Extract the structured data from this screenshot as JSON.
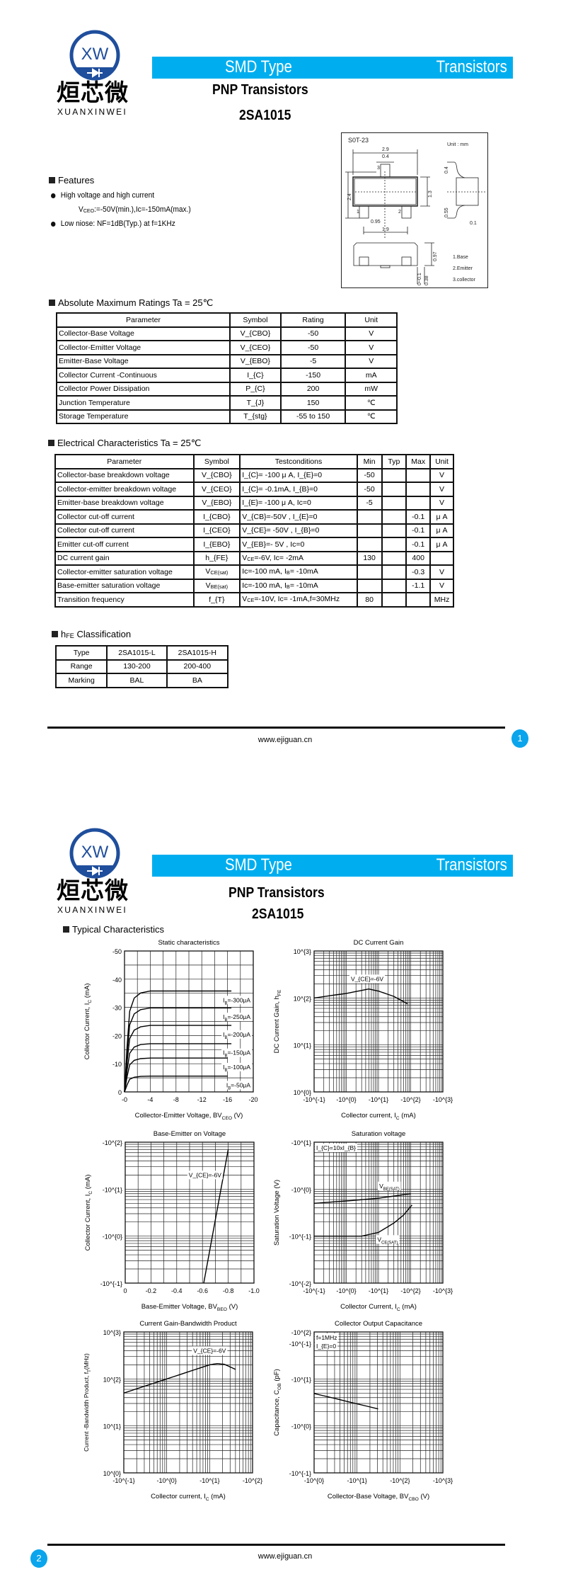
{
  "logo": {
    "mark": "XW",
    "name_cn": "烜芯微",
    "name_en": "XUANXINWEI",
    "ring_color": "#1f4e9c",
    "accent_color": "#5fb936"
  },
  "header": {
    "left": "SMD Type",
    "right": "Transistors",
    "bar_color": "#00aeef"
  },
  "pages": [
    {
      "title": "PNP  Transistors",
      "part": "2SA1015",
      "footer_url": "www.ejiguan.cn",
      "page_number": "1"
    },
    {
      "title": "PNP  Transistors",
      "part": "2SA1015",
      "footer_url": "www.ejiguan.cn",
      "page_number": "2"
    }
  ],
  "package": {
    "name": "S0T-23",
    "unit": "Unit : mm",
    "dims": [
      "2.9",
      "0.4",
      "2.4",
      "1.3",
      "0.4",
      "0.55",
      "0.95",
      "1.9",
      "0.1",
      "0.97",
      "0~0.1",
      "0.38"
    ],
    "pins": [
      "1",
      "2",
      "3"
    ],
    "legend": [
      "1.Base",
      "2.Emitter",
      "3.collector"
    ]
  },
  "features": {
    "heading": "Features",
    "items": [
      {
        "text": "High voltage and high current",
        "detail": "V_{CEO}:=-50V(min.),Ic=-150mA(max.)"
      },
      {
        "text": "Low niose: NF=1dB(Typ.) at f=1KHz"
      }
    ]
  },
  "abs_max": {
    "heading": "Absolute Maximum Ratings Ta = 25℃",
    "columns": [
      "Parameter",
      "Symbol",
      "Rating",
      "Unit"
    ],
    "rows": [
      [
        "Collector-Base Voltage",
        "V_{CBO}",
        "-50",
        "V"
      ],
      [
        "Collector-Emitter Voltage",
        "V_{CEO}",
        "-50",
        "V"
      ],
      [
        "Emitter-Base Voltage",
        "V_{EBO}",
        "-5",
        "V"
      ],
      [
        "Collector Current -Continuous",
        "I_{C}",
        "-150",
        "mA"
      ],
      [
        "Collector Power Dissipation",
        "P_{C}",
        "200",
        "mW"
      ],
      [
        "Junction Temperature",
        "T_{J}",
        "150",
        "℃"
      ],
      [
        "Storage Temperature",
        "T_{stg}",
        "-55 to 150",
        "℃"
      ]
    ]
  },
  "electrical": {
    "heading": "Electrical Characteristics Ta = 25℃",
    "columns": [
      "Parameter",
      "Symbol",
      "Testconditions",
      "Min",
      "Typ",
      "Max",
      "Unit"
    ],
    "rows": [
      [
        "Collector-base breakdown voltage",
        "V_{CBO}",
        "I_{C}= -100 μ A, I_{E}=0",
        "-50",
        "",
        "",
        "V"
      ],
      [
        "Collector-emitter breakdown voltage",
        "V_{CEO}",
        "I_{C}= -0.1mA, I_{B}=0",
        "-50",
        "",
        "",
        "V"
      ],
      [
        "Emitter-base breakdown voltage",
        "V_{EBO}",
        "I_{E}= -100 μ A, Ic=0",
        "-5",
        "",
        "",
        "V"
      ],
      [
        "Collector cut-off current",
        "I_{CBO}",
        "V_{CB}=-50V , I_{E}=0",
        "",
        "",
        "-0.1",
        "μ A"
      ],
      [
        "Collector cut-off current",
        "I_{CEO}",
        "V_{CE}= -50V , I_{B}=0",
        "",
        "",
        "-0.1",
        "μ A"
      ],
      [
        "Emitter cut-off current",
        "I_{EBO}",
        "V_{EB}=- 5V , Ic=0",
        "",
        "",
        "-0.1",
        "μ A"
      ],
      [
        "DC current gain",
        "h_{FE}",
        "V_{CE}=-6V, Ic= -2mA",
        "130",
        "",
        "400",
        ""
      ],
      [
        "Collector-emitter saturation voltage",
        "V_{CE(sat)}",
        "Ic=-100 mA, I_{B}= -10mA",
        "",
        "",
        "-0.3",
        "V"
      ],
      [
        "Base-emitter saturation voltage",
        "V_{BE(sat)}",
        "Ic=-100 mA, I_{B}= -10mA",
        "",
        "",
        "-1.1",
        "V"
      ],
      [
        "Transition frequency",
        "f_{T}",
        "V_{CE}=-10V, Ic= -1mA,f=30MHz",
        "80",
        "",
        "",
        "MHz"
      ]
    ]
  },
  "hfe_class": {
    "heading": "h_{FE} Classification",
    "rows": [
      [
        "Type",
        "2SA1015-L",
        "2SA1015-H"
      ],
      [
        "Range",
        "130-200",
        "200-400"
      ],
      [
        "Marking",
        "BAL",
        "BA"
      ]
    ]
  },
  "typical": {
    "heading": "Typical  Characteristics"
  },
  "chart_data": [
    {
      "type": "line",
      "title": "Static characteristics",
      "xlabel": "Collector-Emitter Voltage, BV_{CEO} (V)",
      "ylabel": "Collector Current, I_{C} (mA)",
      "xscale": "linear",
      "yscale": "linear",
      "xlim": [
        0,
        -20
      ],
      "ylim": [
        0,
        -50
      ],
      "xticks": [
        0,
        -4,
        -8,
        -12,
        -16,
        -20
      ],
      "xtick_labels": [
        "-0",
        "-4",
        "-8",
        "-12",
        "-16",
        "-20"
      ],
      "yticks": [
        0,
        -10,
        -20,
        -30,
        -40,
        -50
      ],
      "ytick_labels": [
        "0",
        "-10",
        "-20",
        "-30",
        "-40",
        "-50"
      ],
      "grid": true,
      "grid_step": [
        -2,
        -5
      ],
      "series": [
        {
          "name": "I_{B}=-300μA",
          "points": [
            [
              0,
              0
            ],
            [
              -0.4,
              -16.1
            ],
            [
              -0.8,
              -28.6
            ],
            [
              -1.5,
              -33.3
            ],
            [
              -2.5,
              -35.1
            ],
            [
              -4,
              -35.8
            ],
            [
              -16.6,
              -35.8
            ]
          ]
        },
        {
          "name": "I_{B}=-250μA",
          "points": [
            [
              0,
              0
            ],
            [
              -0.4,
              -13.4
            ],
            [
              -0.8,
              -23.8
            ],
            [
              -1.5,
              -27.7
            ],
            [
              -2.5,
              -29.2
            ],
            [
              -4,
              -29.8
            ],
            [
              -16.6,
              -29.8
            ]
          ]
        },
        {
          "name": "I_{B}=-200μA",
          "points": [
            [
              0,
              0
            ],
            [
              -0.4,
              -10.6
            ],
            [
              -0.8,
              -18.9
            ],
            [
              -1.5,
              -21.9
            ],
            [
              -2.5,
              -23.1
            ],
            [
              -4,
              -23.6
            ],
            [
              -16.6,
              -23.6
            ]
          ]
        },
        {
          "name": "I_{B}=-150μA",
          "points": [
            [
              0,
              0
            ],
            [
              -0.4,
              -7.7
            ],
            [
              -0.8,
              -13.7
            ],
            [
              -1.5,
              -15.9
            ],
            [
              -2.5,
              -16.8
            ],
            [
              -4,
              -17.1
            ],
            [
              -16.6,
              -17.1
            ]
          ]
        },
        {
          "name": "I_{B}=-100μA",
          "points": [
            [
              0,
              0
            ],
            [
              -0.4,
              -5.4
            ],
            [
              -0.8,
              -9.6
            ],
            [
              -1.5,
              -11.2
            ],
            [
              -2.5,
              -11.8
            ],
            [
              -4,
              -12
            ],
            [
              -16,
              -12
            ]
          ]
        },
        {
          "name": "I_{B}=-50μA",
          "points": [
            [
              0,
              0
            ],
            [
              -0.4,
              -2.5
            ],
            [
              -0.8,
              -4.5
            ],
            [
              -1.5,
              -5.2
            ],
            [
              -2.5,
              -5.5
            ],
            [
              -4,
              -5.6
            ],
            [
              -16,
              -5.6
            ]
          ]
        }
      ]
    },
    {
      "type": "line",
      "title": "DC Current Gain",
      "xlabel": "Collector current, I_{C} (mA)",
      "ylabel": "DC Current Gain, h_{FE}",
      "xscale": "log",
      "yscale": "log",
      "xlim": [
        -0.1,
        -1000
      ],
      "ylim": [
        1,
        1000
      ],
      "xticks": [
        -0.1,
        -1,
        -10,
        -100,
        -1000
      ],
      "xtick_labels": [
        "-10^{-1}",
        "-10^{0}",
        "-10^{1}",
        "-10^{2}",
        "-10^{3}"
      ],
      "yticks": [
        1,
        10,
        100,
        1000
      ],
      "ytick_labels": [
        "10^{0}",
        "10^{1}",
        "10^{2}",
        "10^{3}"
      ],
      "grid": true,
      "annotation": "V_{CE}=-6V",
      "series": [
        {
          "points": [
            [
              -0.1,
              100
            ],
            [
              -1,
              125
            ],
            [
              -5,
              155
            ],
            [
              -10,
              140
            ],
            [
              -30,
              108
            ],
            [
              -80,
              75
            ]
          ]
        }
      ]
    },
    {
      "type": "line",
      "title": "Base-Emitter on Voltage",
      "xlabel": "Base-Emitter Voltage, BV_{BEO} (V)",
      "ylabel": "Collector Current, I_{C} (mA)",
      "xscale": "linear",
      "yscale": "log",
      "xlim": [
        0,
        -1.0
      ],
      "ylim": [
        -0.1,
        -100
      ],
      "xticks": [
        0,
        -0.2,
        -0.4,
        -0.6,
        -0.8,
        -1.0
      ],
      "xtick_labels": [
        "0",
        "-0.2",
        "-0.4",
        "-0.6",
        "-0.8",
        "-1.0"
      ],
      "yticks": [
        -0.1,
        -1,
        -10,
        -100
      ],
      "ytick_labels": [
        "-10^{-1}",
        "-10^{0}",
        "-10^{1}",
        "-10^{2}"
      ],
      "grid": true,
      "grid_step": [
        -0.1,
        null
      ],
      "annotation": "V_{CE}=-6V",
      "series": [
        {
          "points": [
            [
              -0.61,
              -0.1
            ],
            [
              -0.8,
              -70
            ]
          ]
        }
      ]
    },
    {
      "type": "line",
      "title": "Saturation voltage",
      "xlabel": "Collector Current, I_{C} (mA)",
      "ylabel": "Saturation Voltage (V)",
      "xscale": "log",
      "yscale": "log",
      "xlim": [
        -0.1,
        -1000
      ],
      "ylim": [
        -0.01,
        -10
      ],
      "xticks": [
        -0.1,
        -1,
        -10,
        -100,
        -1000
      ],
      "xtick_labels": [
        "-10^{-1}",
        "-10^{0}",
        "-10^{1}",
        "-10^{2}",
        "-10^{3}"
      ],
      "yticks": [
        -0.01,
        -0.1,
        -1,
        -10
      ],
      "ytick_labels": [
        "-10^{-2}",
        "-10^{-1}",
        "-10^{0}",
        "-10^{1}"
      ],
      "grid": true,
      "annotation": "I_{C}=10xI_{B}",
      "series": [
        {
          "name": "V_{BE(SAT)}",
          "points": [
            [
              -0.1,
              -0.5
            ],
            [
              -1,
              -0.56
            ],
            [
              -10,
              -0.64
            ],
            [
              -100,
              -0.8
            ]
          ]
        },
        {
          "name": "V_{CE(SAT)}",
          "points": [
            [
              -0.1,
              -0.1
            ],
            [
              -3,
              -0.1
            ],
            [
              -10,
              -0.12
            ],
            [
              -30,
              -0.19
            ],
            [
              -60,
              -0.28
            ],
            [
              -110,
              -0.46
            ]
          ]
        }
      ]
    },
    {
      "type": "line",
      "title": "Current Gain-Bandwidth Product",
      "xlabel": "Collector current, I_{C} (mA)",
      "ylabel": "Current -Bandwidth Product, f_{T}(MHz)",
      "xscale": "log",
      "yscale": "log",
      "xlim": [
        -0.1,
        -100
      ],
      "ylim": [
        1,
        1000
      ],
      "xticks": [
        -0.1,
        -1,
        -10,
        -100
      ],
      "xtick_labels": [
        "-10^{-1}",
        "-10^{0}",
        "-10^{1}",
        "-10^{2}"
      ],
      "yticks": [
        1,
        10,
        100,
        1000
      ],
      "ytick_labels": [
        "10^{0}",
        "10^{1}",
        "10^{2}",
        "10^{3}"
      ],
      "grid": true,
      "annotation": "V_{CE}=-6V",
      "series": [
        {
          "points": [
            [
              -0.1,
              50
            ],
            [
              -1,
              100
            ],
            [
              -10,
              200
            ],
            [
              -15,
              212
            ],
            [
              -22,
              205
            ],
            [
              -40,
              160
            ]
          ]
        }
      ]
    },
    {
      "type": "line",
      "title": "Collector Output Capacitance",
      "xlabel": "Collector-Base Voltage, BV_{CBO} (V)",
      "ylabel": "Capacitance, C_{OB} (pF)",
      "xscale": "log",
      "yscale": "log",
      "xlim": [
        -1,
        -1000
      ],
      "ylim": [
        -0.1,
        -100
      ],
      "xticks": [
        -1,
        -10,
        -100,
        -1000
      ],
      "xtick_labels": [
        "-10^{0}",
        "-10^{1}",
        "-10^{2}",
        "-10^{3}"
      ],
      "yticks": [
        -0.1,
        -1,
        -10,
        -100
      ],
      "ytick_labels": [
        "-10^{-1}",
        "-10^{0}",
        "-10^{1}",
        "-10^{2}"
      ],
      "extra_ytick_label": "-10^{-1}",
      "grid": true,
      "annotation": [
        "f=1MHz",
        "I_{E}=0"
      ],
      "series": [
        {
          "points": [
            [
              -1,
              -4.9
            ],
            [
              -31,
              -2.3
            ]
          ]
        }
      ]
    }
  ]
}
